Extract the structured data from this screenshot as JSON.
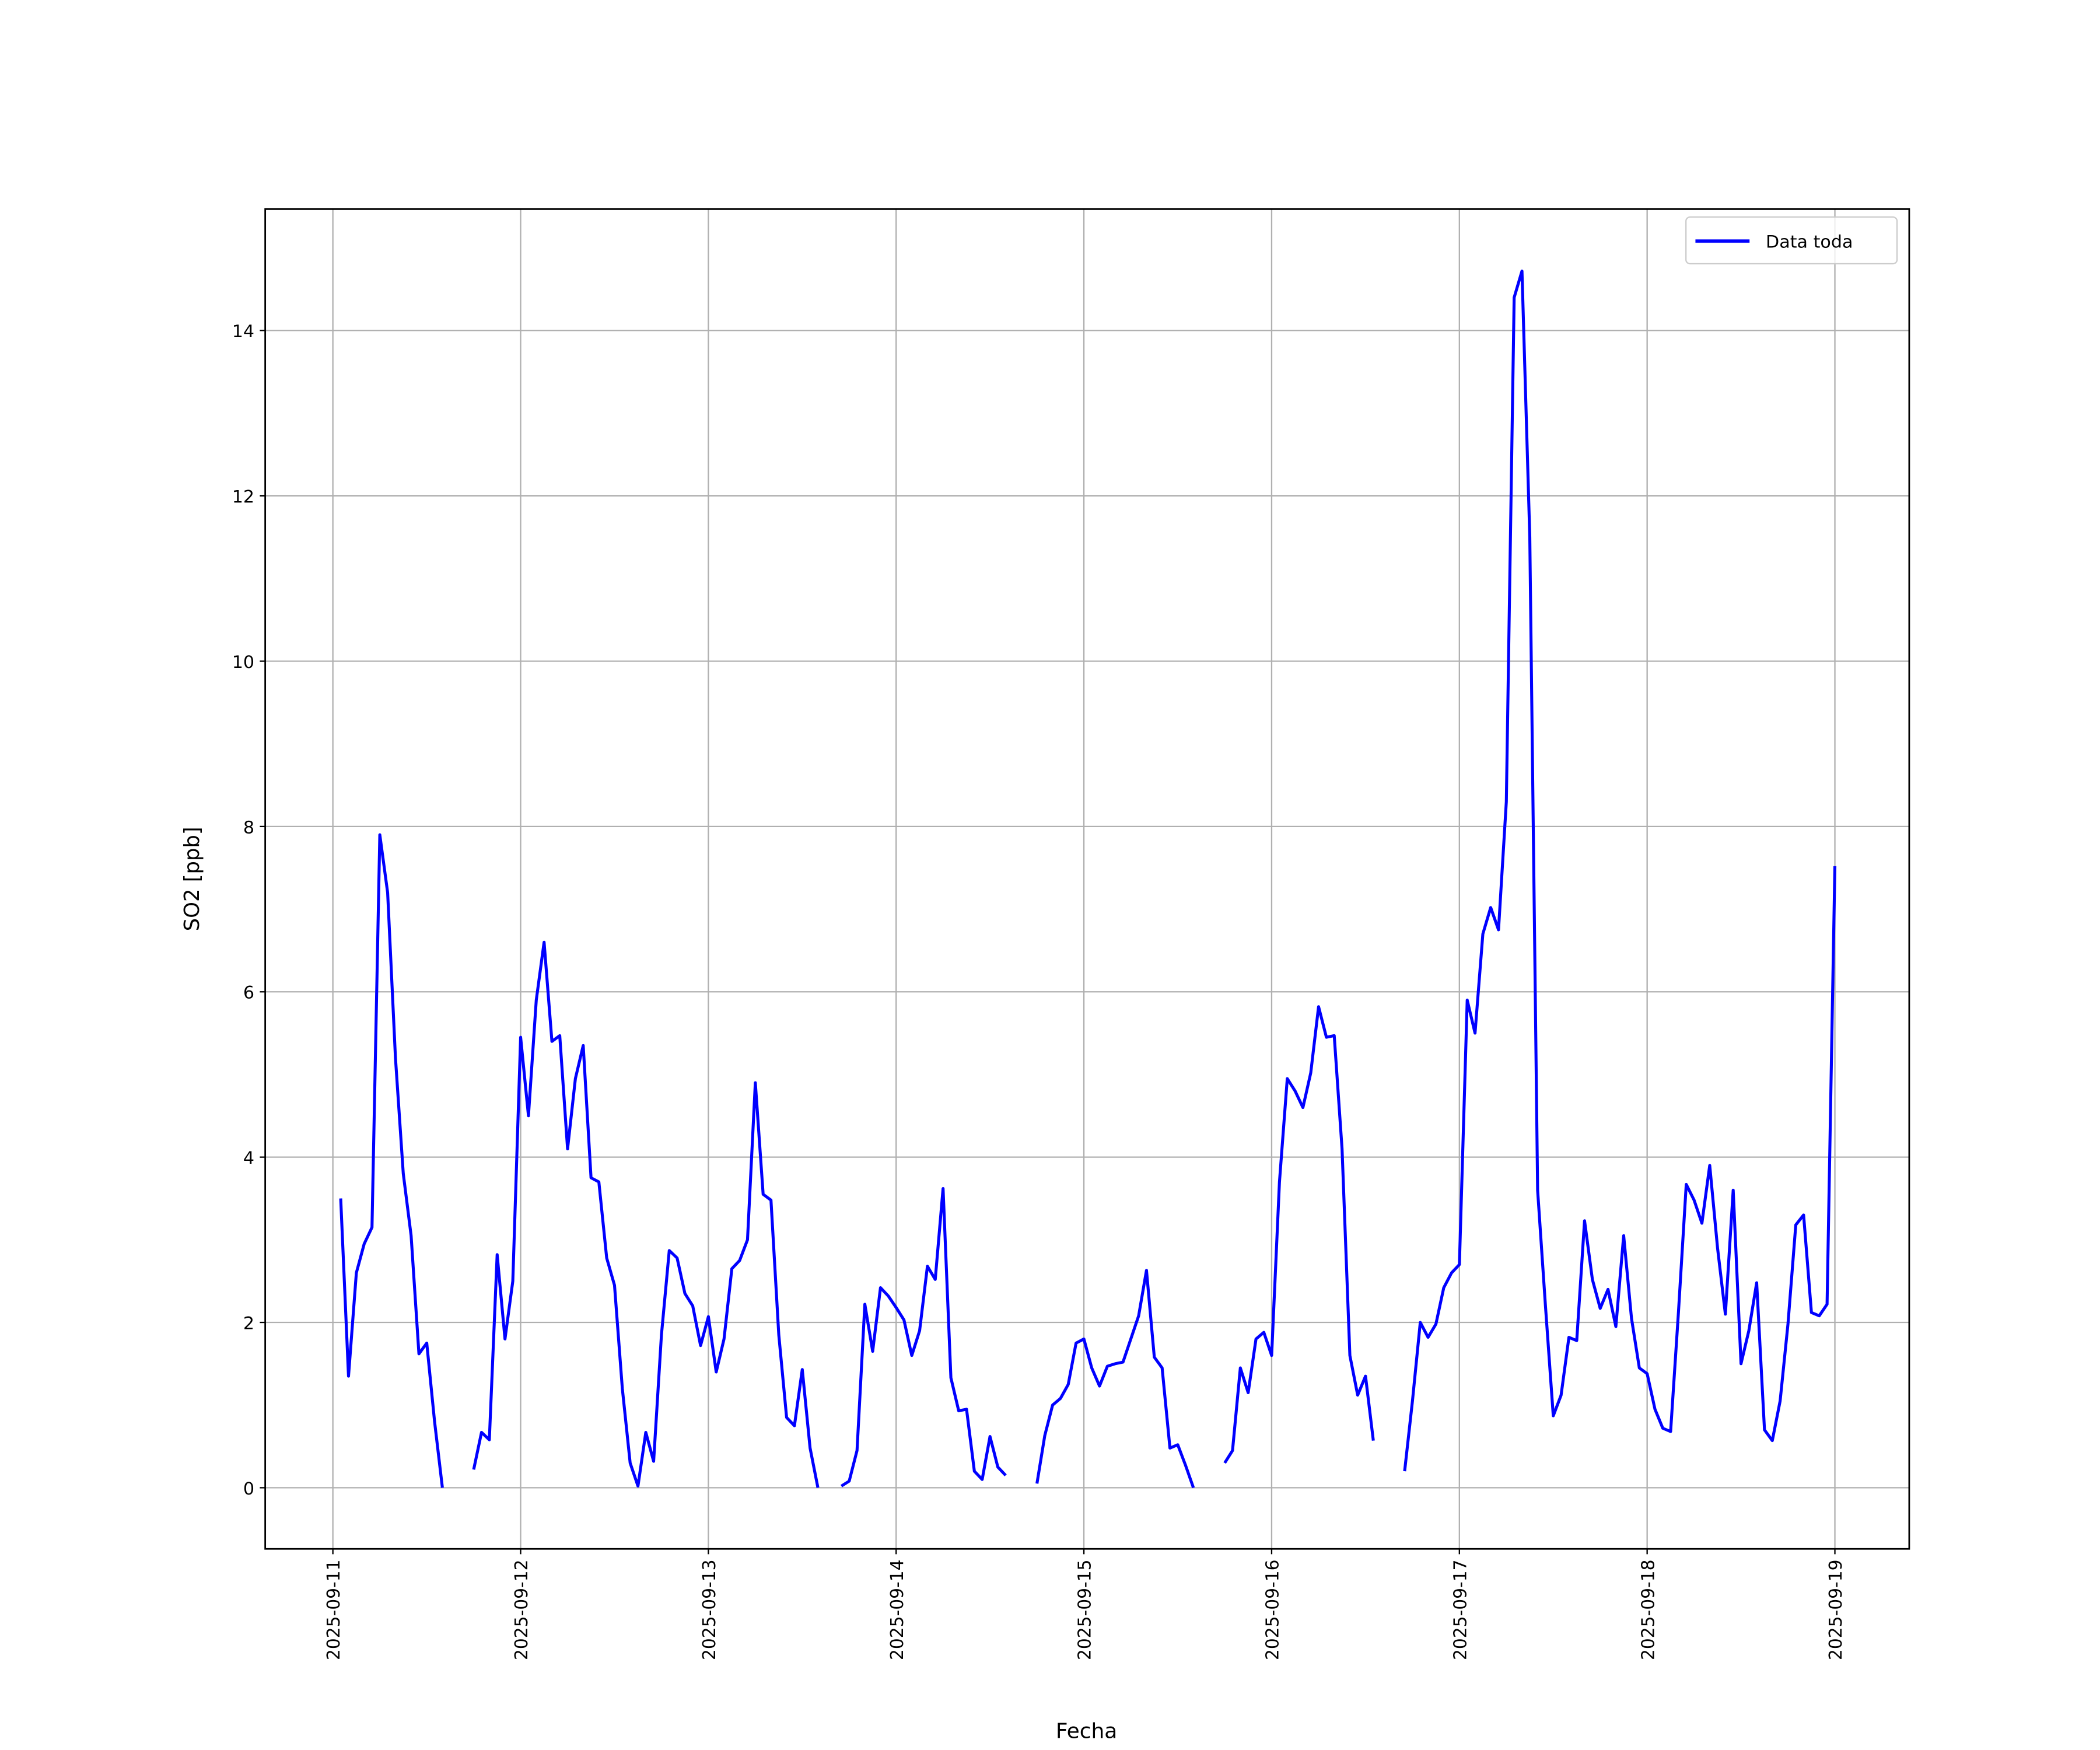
{
  "chart_data": {
    "type": "line",
    "xlabel": "Fecha",
    "ylabel": "SO2 [ppb]",
    "x": [
      "2025-09-11 01:00",
      "2025-09-11 02:00",
      "2025-09-11 03:00",
      "2025-09-11 04:00",
      "2025-09-11 05:00",
      "2025-09-11 06:00",
      "2025-09-11 07:00",
      "2025-09-11 08:00",
      "2025-09-11 09:00",
      "2025-09-11 10:00",
      "2025-09-11 11:00",
      "2025-09-11 12:00",
      "2025-09-11 13:00",
      "2025-09-11 14:00",
      "2025-09-11 15:00",
      "2025-09-11 16:00",
      "2025-09-11 17:00",
      "2025-09-11 18:00",
      "2025-09-11 19:00",
      "2025-09-11 20:00",
      "2025-09-11 21:00",
      "2025-09-11 22:00",
      "2025-09-11 23:00",
      "2025-09-12 00:00",
      "2025-09-12 01:00",
      "2025-09-12 02:00",
      "2025-09-12 03:00",
      "2025-09-12 04:00",
      "2025-09-12 05:00",
      "2025-09-12 06:00",
      "2025-09-12 07:00",
      "2025-09-12 08:00",
      "2025-09-12 09:00",
      "2025-09-12 10:00",
      "2025-09-12 11:00",
      "2025-09-12 12:00",
      "2025-09-12 13:00",
      "2025-09-12 14:00",
      "2025-09-12 15:00",
      "2025-09-12 16:00",
      "2025-09-12 17:00",
      "2025-09-12 18:00",
      "2025-09-12 19:00",
      "2025-09-12 20:00",
      "2025-09-12 21:00",
      "2025-09-12 22:00",
      "2025-09-12 23:00",
      "2025-09-13 00:00",
      "2025-09-13 01:00",
      "2025-09-13 02:00",
      "2025-09-13 03:00",
      "2025-09-13 04:00",
      "2025-09-13 05:00",
      "2025-09-13 06:00",
      "2025-09-13 07:00",
      "2025-09-13 08:00",
      "2025-09-13 09:00",
      "2025-09-13 10:00",
      "2025-09-13 11:00",
      "2025-09-13 12:00",
      "2025-09-13 13:00",
      "2025-09-13 14:00",
      "2025-09-13 15:00",
      "2025-09-13 16:00",
      "2025-09-13 17:00",
      "2025-09-13 18:00",
      "2025-09-13 19:00",
      "2025-09-13 20:00",
      "2025-09-13 21:00",
      "2025-09-13 22:00",
      "2025-09-13 23:00",
      "2025-09-14 00:00",
      "2025-09-14 01:00",
      "2025-09-14 02:00",
      "2025-09-14 03:00",
      "2025-09-14 04:00",
      "2025-09-14 05:00",
      "2025-09-14 06:00",
      "2025-09-14 07:00",
      "2025-09-14 08:00",
      "2025-09-14 09:00",
      "2025-09-14 10:00",
      "2025-09-14 11:00",
      "2025-09-14 12:00",
      "2025-09-14 13:00",
      "2025-09-14 14:00",
      "2025-09-14 15:00",
      "2025-09-14 16:00",
      "2025-09-14 17:00",
      "2025-09-14 18:00",
      "2025-09-14 19:00",
      "2025-09-14 20:00",
      "2025-09-14 21:00",
      "2025-09-14 22:00",
      "2025-09-14 23:00",
      "2025-09-15 00:00",
      "2025-09-15 01:00",
      "2025-09-15 02:00",
      "2025-09-15 03:00",
      "2025-09-15 04:00",
      "2025-09-15 05:00",
      "2025-09-15 06:00",
      "2025-09-15 07:00",
      "2025-09-15 08:00",
      "2025-09-15 09:00",
      "2025-09-15 10:00",
      "2025-09-15 11:00",
      "2025-09-15 12:00",
      "2025-09-15 13:00",
      "2025-09-15 14:00",
      "2025-09-15 15:00",
      "2025-09-15 16:00",
      "2025-09-15 17:00",
      "2025-09-15 18:00",
      "2025-09-15 19:00",
      "2025-09-15 20:00",
      "2025-09-15 21:00",
      "2025-09-15 22:00",
      "2025-09-15 23:00",
      "2025-09-16 00:00",
      "2025-09-16 01:00",
      "2025-09-16 02:00",
      "2025-09-16 03:00",
      "2025-09-16 04:00",
      "2025-09-16 05:00",
      "2025-09-16 06:00",
      "2025-09-16 07:00",
      "2025-09-16 08:00",
      "2025-09-16 09:00",
      "2025-09-16 10:00",
      "2025-09-16 11:00",
      "2025-09-16 12:00",
      "2025-09-16 13:00",
      "2025-09-16 14:00",
      "2025-09-16 15:00",
      "2025-09-16 16:00",
      "2025-09-16 17:00",
      "2025-09-16 18:00",
      "2025-09-16 19:00",
      "2025-09-16 20:00",
      "2025-09-16 21:00",
      "2025-09-16 22:00",
      "2025-09-16 23:00",
      "2025-09-17 00:00",
      "2025-09-17 01:00",
      "2025-09-17 02:00",
      "2025-09-17 03:00",
      "2025-09-17 04:00",
      "2025-09-17 05:00",
      "2025-09-17 06:00",
      "2025-09-17 07:00",
      "2025-09-17 08:00",
      "2025-09-17 09:00",
      "2025-09-17 10:00",
      "2025-09-17 11:00",
      "2025-09-17 12:00",
      "2025-09-17 13:00",
      "2025-09-17 14:00",
      "2025-09-17 15:00",
      "2025-09-17 16:00",
      "2025-09-17 17:00",
      "2025-09-17 18:00",
      "2025-09-17 19:00",
      "2025-09-17 20:00",
      "2025-09-17 21:00",
      "2025-09-17 22:00",
      "2025-09-17 23:00",
      "2025-09-18 00:00",
      "2025-09-18 01:00",
      "2025-09-18 02:00",
      "2025-09-18 03:00",
      "2025-09-18 04:00",
      "2025-09-18 05:00",
      "2025-09-18 06:00",
      "2025-09-18 07:00",
      "2025-09-18 08:00",
      "2025-09-18 09:00",
      "2025-09-18 10:00",
      "2025-09-18 11:00",
      "2025-09-18 12:00",
      "2025-09-18 13:00",
      "2025-09-18 14:00",
      "2025-09-18 15:00",
      "2025-09-18 16:00",
      "2025-09-18 17:00",
      "2025-09-18 18:00",
      "2025-09-18 19:00",
      "2025-09-18 20:00",
      "2025-09-18 21:00",
      "2025-09-18 22:00",
      "2025-09-18 23:00",
      "2025-09-19 00:00"
    ],
    "series": [
      {
        "name": "Data toda",
        "color": "#0000ff",
        "values": [
          3.5,
          1.35,
          2.6,
          2.95,
          3.15,
          7.9,
          7.2,
          5.2,
          3.8,
          3.05,
          1.62,
          1.75,
          0.8,
          0.0,
          null,
          null,
          null,
          0.22,
          0.67,
          0.58,
          2.82,
          1.8,
          2.5,
          5.45,
          4.5,
          5.9,
          6.6,
          5.4,
          5.47,
          4.1,
          4.95,
          5.35,
          3.75,
          3.7,
          2.78,
          2.45,
          1.2,
          0.3,
          0.02,
          0.67,
          0.32,
          1.85,
          2.87,
          2.78,
          2.35,
          2.2,
          1.72,
          2.07,
          1.4,
          1.8,
          2.65,
          2.75,
          3.0,
          4.9,
          3.55,
          3.48,
          1.85,
          0.85,
          0.75,
          1.43,
          0.48,
          0.0,
          null,
          null,
          0.02,
          0.08,
          0.45,
          2.22,
          1.65,
          2.42,
          2.32,
          2.18,
          2.03,
          1.6,
          1.9,
          2.68,
          2.52,
          3.62,
          1.33,
          0.93,
          0.95,
          0.2,
          0.1,
          0.62,
          0.25,
          0.15,
          null,
          null,
          null,
          0.05,
          0.63,
          1.0,
          1.08,
          1.25,
          1.75,
          1.8,
          1.45,
          1.23,
          1.47,
          1.5,
          1.52,
          1.8,
          2.08,
          2.63,
          1.58,
          1.45,
          0.48,
          0.52,
          0.27,
          0.0,
          null,
          null,
          null,
          0.3,
          0.45,
          1.45,
          1.15,
          1.8,
          1.88,
          1.6,
          3.7,
          4.95,
          4.8,
          4.6,
          5.02,
          5.82,
          5.45,
          5.47,
          4.1,
          1.6,
          1.12,
          1.35,
          0.57,
          null,
          null,
          null,
          0.2,
          1.05,
          2.0,
          1.82,
          1.98,
          2.42,
          2.6,
          2.7,
          5.9,
          5.5,
          6.7,
          7.02,
          6.75,
          8.3,
          14.4,
          14.72,
          11.5,
          3.6,
          2.2,
          0.87,
          1.12,
          1.82,
          1.78,
          3.23,
          2.52,
          2.17,
          2.4,
          1.95,
          3.05,
          2.05,
          1.45,
          1.38,
          0.95,
          0.72,
          0.68,
          2.12,
          3.67,
          3.48,
          3.2,
          3.9,
          2.9,
          2.1,
          3.6,
          1.5,
          1.9,
          2.48,
          0.7,
          0.57,
          1.05,
          1.98,
          3.18,
          3.3,
          2.12,
          2.08,
          2.22,
          7.52
        ]
      }
    ],
    "xlim": [
      "2025-09-10 15:21",
      "2025-09-19 09:30"
    ],
    "xticks": [
      "2025-09-11",
      "2025-09-12",
      "2025-09-13",
      "2025-09-14",
      "2025-09-15",
      "2025-09-16",
      "2025-09-17",
      "2025-09-18",
      "2025-09-19"
    ],
    "ylim": [
      -0.74,
      15.47
    ],
    "yticks": [
      0,
      2,
      4,
      6,
      8,
      10,
      12,
      14
    ],
    "grid": true,
    "legend": "upper right"
  }
}
